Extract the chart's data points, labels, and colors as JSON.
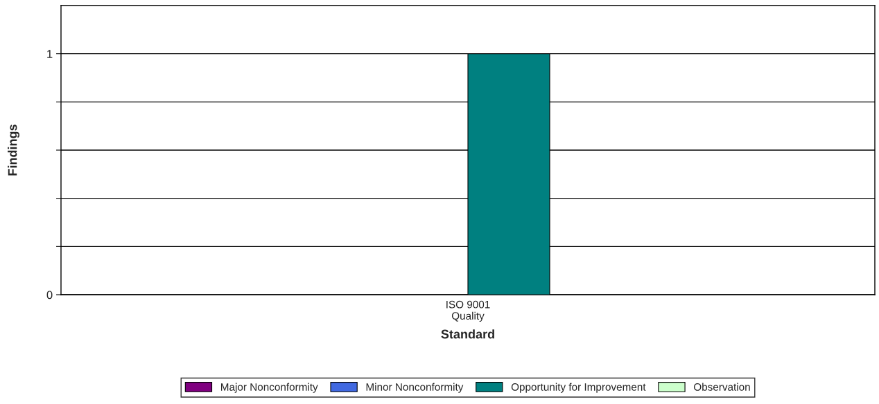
{
  "chart_data": {
    "type": "bar",
    "xlabel": "Standard",
    "ylabel": "Findings",
    "categories": [
      "ISO 9001\nQuality"
    ],
    "series": [
      {
        "name": "Major Nonconformity",
        "color": "#800080",
        "values": [
          0
        ]
      },
      {
        "name": "Minor Nonconformity",
        "color": "#4169e1",
        "values": [
          0
        ]
      },
      {
        "name": "Opportunity for Improvement",
        "color": "#008080",
        "values": [
          1
        ]
      },
      {
        "name": "Observation",
        "color": "#ccffcc",
        "values": [
          0
        ]
      }
    ],
    "ylim": [
      0,
      1.2
    ],
    "yticks": [
      0,
      {
        "value": 0.2,
        "label": null
      },
      {
        "value": 0.4,
        "label": null
      },
      {
        "value": 0.6,
        "label": null
      },
      {
        "value": 0.8,
        "label": null
      },
      1
    ],
    "grid": "y",
    "legend": "bottom"
  }
}
